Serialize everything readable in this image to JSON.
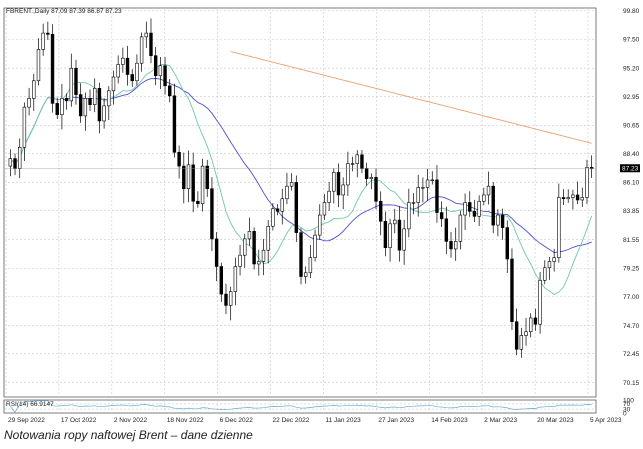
{
  "header": {
    "symbol_line": "FBRENT.,Daily 87.09 87.39 86.87 87.23"
  },
  "caption": "Notowania ropy naftowej Brent – dane dzienne",
  "colors": {
    "candle_body": "#000000",
    "ma_long": "#e8a070",
    "ma_mid": "#5050d0",
    "ma_short": "#70c8a8",
    "rsi": "#66aadd",
    "grid": "#c8c8c8",
    "price_box": "#000000"
  },
  "chart_data": [
    {
      "type": "candlestick",
      "title": "FBRENT.,Daily",
      "ylim": [
        69,
        100
      ],
      "y_ticks": [
        "99.80",
        "97.50",
        "95.20",
        "92.95",
        "90.65",
        "88.40",
        "86.10",
        "83.85",
        "81.55",
        "79.25",
        "77.00",
        "74.70",
        "72.45",
        "70.15"
      ],
      "x_tick_labels": [
        "29 Sep 2022",
        "17 Oct 2022",
        "2 Nov 2022",
        "18 Nov 2022",
        "6 Dec 2022",
        "22 Dec 2022",
        "11 Jan 2023",
        "27 Jan 2023",
        "14 Feb 2023",
        "2 Mar 2023",
        "20 Mar 2023",
        "5 Apr 2023"
      ],
      "last_price": "87.23",
      "last_bar": {
        "open": 87.09,
        "high": 87.39,
        "low": 86.87,
        "close": 87.23
      },
      "series_close": [
        88.0,
        87.2,
        88.9,
        92.1,
        92.8,
        94.2,
        96.7,
        98.0,
        97.9,
        92.4,
        91.5,
        92.8,
        92.6,
        95.2,
        93.1,
        91.4,
        92.8,
        92.3,
        93.6,
        91.0,
        92.2,
        93.4,
        94.5,
        95.5,
        96.0,
        94.7,
        94.2,
        95.6,
        97.7,
        98.0,
        96.2,
        94.6,
        95.4,
        93.8,
        93.0,
        88.5,
        87.4,
        85.6,
        87.5,
        84.6,
        84.4,
        87.4,
        85.6,
        81.6,
        79.4,
        77.2,
        76.3,
        77.4,
        79.4,
        80.3,
        81.6,
        82.2,
        79.6,
        79.8,
        80.7,
        82.6,
        84.0,
        83.8,
        84.8,
        85.8,
        86.1,
        82.1,
        78.6,
        78.9,
        80.1,
        81.9,
        83.5,
        84.5,
        85.4,
        86.9,
        85.1,
        85.9,
        87.6,
        87.6,
        88.3,
        87.2,
        86.4,
        86.5,
        84.6,
        83.0,
        80.9,
        82.8,
        83.1,
        80.7,
        82.4,
        84.5,
        84.5,
        85.7,
        85.7,
        86.3,
        86.3,
        83.7,
        83.2,
        81.4,
        80.8,
        81.4,
        83.5,
        84.5,
        83.8,
        83.4,
        84.6,
        85.1,
        85.8,
        82.7,
        83.5,
        82.5,
        80.0,
        75.0,
        72.8,
        73.9,
        74.2,
        75.3,
        74.8,
        78.3,
        79.3,
        79.8,
        80.1,
        84.9,
        84.8,
        84.9,
        85.1,
        84.7,
        84.9,
        87.3,
        87.2
      ],
      "moving_averages": [
        {
          "label": "ma-long",
          "color": "#e8a070"
        },
        {
          "label": "ma-mid",
          "color": "#5050d0"
        },
        {
          "label": "ma-short",
          "color": "#70c8a8"
        }
      ]
    },
    {
      "type": "line",
      "title": "RSI(14) 66.9147",
      "ylim": [
        0,
        100
      ],
      "y_ticks": [
        "100",
        "70",
        "30",
        "0"
      ],
      "series": [
        {
          "name": "RSI(14)",
          "last": 66.9147
        }
      ]
    }
  ]
}
